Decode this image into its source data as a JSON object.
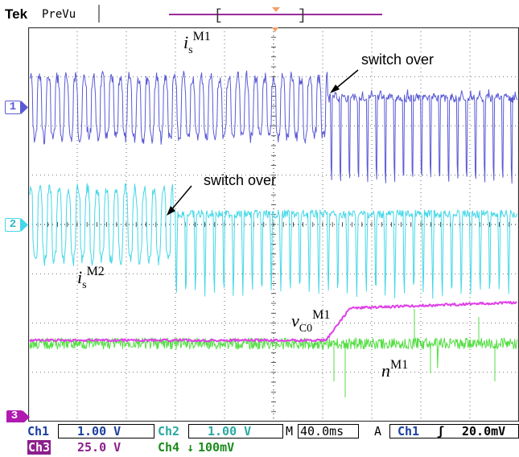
{
  "header": {
    "brand": "Tek",
    "mode": "PreVu"
  },
  "channels": [
    {
      "id": "1",
      "color": "#5a5ad6"
    },
    {
      "id": "2",
      "color": "#44d8e8"
    },
    {
      "id": "3",
      "color": "#b01ab0"
    }
  ],
  "annotations": {
    "is_m1": {
      "base": "i",
      "sub": "s",
      "sup": "M1"
    },
    "is_m2": {
      "base": "i",
      "sub": "s",
      "sup": "M2"
    },
    "vc0_m1": {
      "base": "v",
      "sub": "C0",
      "sup": "M1"
    },
    "n_m1": {
      "base": "n",
      "sup": "M1"
    },
    "switch_1": "switch over",
    "switch_2": "switch over"
  },
  "status": {
    "ch1_label": "Ch1",
    "ch1_scale": "1.00 V",
    "ch2_label": "Ch2",
    "ch2_scale": "1.00 V",
    "ch3_label": "Ch3",
    "ch3_scale": "25.0 V",
    "ch4_label": "Ch4",
    "ch4_scale": "100mV",
    "ch4_coupling": "↓",
    "timebase_prefix": "M",
    "timebase": "40.0ms",
    "trigger_mode": "A",
    "trigger_source": "Ch1",
    "trigger_slope": "ʃ",
    "trigger_level": "20.0mV"
  },
  "colors": {
    "ch1": "#5a5ad6",
    "ch2": "#44d8e8",
    "ch3": "#e040e8",
    "ch4": "#55dd44",
    "grid": "#333333",
    "ch3_label_bg": "#b01ab0",
    "status_text": "#1b3f9e",
    "ch2_status": "#2aa9a2",
    "ch3_status": "#8c1f8c",
    "ch4_status": "#1c8c1c",
    "prevu_bar": "#9b2b9b",
    "trigger_marker": "#f2a06a"
  }
}
